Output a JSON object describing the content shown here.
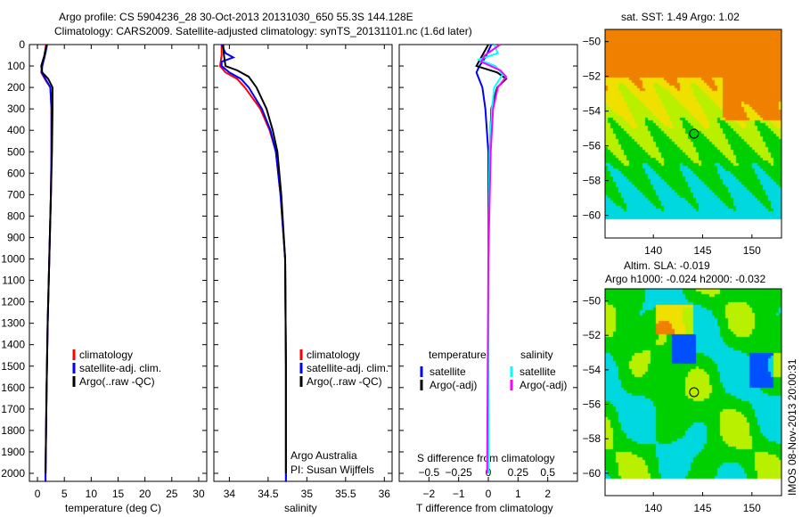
{
  "title_line1": "Argo profile: CS 5904236_28 30-Oct-2013 20131030_650 55.3S 144.128E",
  "title_line2": "Climatology: CARS2009. Satellite-adjusted climatology: synTS_20131101.nc (1.6d later)",
  "footer": "IMOS 08-Nov-2013 20:00:31",
  "colors": {
    "climatology": "#ff0000",
    "satellite": "#0000ff",
    "argo": "#000000",
    "s_satellite": "#00ffff",
    "s_argo": "#ff00ff"
  },
  "chart_data": [
    {
      "type": "line",
      "name": "temperature",
      "xlabel": "temperature (deg C)",
      "ylabel": "",
      "xlim": [
        -1.5,
        31.5
      ],
      "ylim": [
        2040,
        0
      ],
      "xticks": [
        0,
        5,
        10,
        15,
        20,
        25,
        30
      ],
      "yticks": [
        0,
        100,
        200,
        300,
        400,
        500,
        600,
        700,
        800,
        900,
        1000,
        1100,
        1200,
        1300,
        1400,
        1500,
        1600,
        1700,
        1800,
        1900,
        2000
      ],
      "legend": [
        "climatology",
        "satellite-adj. clim.",
        "Argo(..raw -QC)"
      ],
      "series": [
        {
          "name": "climatology",
          "depth": [
            0,
            50,
            100,
            130,
            170,
            200,
            300,
            500,
            700,
            1000,
            1300,
            1600,
            2000,
            2040
          ],
          "values": [
            1.6,
            1.3,
            0.8,
            0.7,
            1.6,
            2.4,
            2.6,
            2.6,
            2.5,
            2.2,
            1.9,
            1.7,
            1.5,
            1.5
          ]
        },
        {
          "name": "satellite-adj. clim.",
          "depth": [
            0,
            50,
            100,
            130,
            170,
            200,
            300,
            500,
            700,
            1000,
            1300,
            1600,
            2000,
            2040
          ],
          "values": [
            1.8,
            1.4,
            0.9,
            0.8,
            1.7,
            2.4,
            2.6,
            2.6,
            2.5,
            2.2,
            1.9,
            1.7,
            1.5,
            1.5
          ]
        },
        {
          "name": "Argo(..raw -QC)",
          "depth": [
            0,
            50,
            100,
            130,
            160,
            200,
            300,
            500,
            700,
            1000,
            1300,
            1600,
            2000
          ],
          "values": [
            1.7,
            1.3,
            0.7,
            0.9,
            2.0,
            2.8,
            2.8,
            2.7,
            2.5,
            2.2,
            1.9,
            1.7,
            1.5
          ]
        }
      ]
    },
    {
      "type": "line",
      "name": "salinity",
      "xlabel": "salinity",
      "xlim": [
        33.8,
        36.1
      ],
      "ylim": [
        2040,
        0
      ],
      "xticks": [
        34,
        34.5,
        35,
        35.5,
        36
      ],
      "legend": [
        "climatology",
        "satellite-adj. clim.",
        "Argo(..raw -QC)"
      ],
      "annotation": [
        "Argo Australia",
        "PI: Susan Wijffels"
      ],
      "series": [
        {
          "name": "climatology",
          "depth": [
            0,
            50,
            100,
            130,
            160,
            200,
            300,
            400,
            500,
            700,
            1000,
            1500,
            2000,
            2040
          ],
          "values": [
            33.9,
            33.9,
            33.88,
            33.95,
            34.1,
            34.2,
            34.4,
            34.52,
            34.6,
            34.66,
            34.72,
            34.73,
            34.73,
            34.73
          ]
        },
        {
          "name": "satellite-adj. clim.",
          "depth": [
            0,
            40,
            60,
            80,
            100,
            130,
            160,
            200,
            300,
            400,
            500,
            700,
            1000,
            1500,
            2000,
            2040
          ],
          "values": [
            33.9,
            33.95,
            34.05,
            33.9,
            33.9,
            34.0,
            34.15,
            34.25,
            34.42,
            34.53,
            34.6,
            34.66,
            34.72,
            34.73,
            34.73,
            34.73
          ]
        },
        {
          "name": "Argo(..raw -QC)",
          "depth": [
            0,
            50,
            100,
            120,
            150,
            200,
            300,
            400,
            500,
            700,
            1000,
            1500,
            2000
          ],
          "values": [
            33.92,
            33.93,
            33.95,
            34.1,
            34.25,
            34.35,
            34.48,
            34.56,
            34.62,
            34.67,
            34.72,
            34.73,
            34.73
          ]
        }
      ]
    },
    {
      "type": "line",
      "name": "difference",
      "xlabel": "T difference from climatology",
      "x2label": "S difference from climatology",
      "xlim": [
        -3,
        3
      ],
      "x2lim": [
        -0.75,
        0.75
      ],
      "ylim": [
        2040,
        0
      ],
      "xticks": [
        -2,
        -1,
        0,
        1,
        2
      ],
      "x2ticks": [
        -0.5,
        -0.25,
        0,
        0.25,
        0.5
      ],
      "legend_headers": [
        "temperature",
        "salinity"
      ],
      "legend": [
        "satellite",
        "Argo(-adj)",
        "satellite",
        "Argo(-adj)"
      ],
      "series": [
        {
          "name": "T satellite",
          "axis": "T",
          "depth": [
            0,
            60,
            100,
            130,
            200,
            300,
            500,
            1000,
            2000
          ],
          "values": [
            0.1,
            -0.1,
            -0.3,
            -0.4,
            -0.2,
            -0.1,
            0,
            0,
            0
          ]
        },
        {
          "name": "T Argo(-adj)",
          "axis": "T",
          "depth": [
            0,
            50,
            100,
            130,
            160,
            200,
            300,
            500,
            1000,
            2000
          ],
          "values": [
            0.0,
            -0.2,
            -0.4,
            0.3,
            0.6,
            0.3,
            0.1,
            0.05,
            0,
            0
          ]
        },
        {
          "name": "S satellite",
          "axis": "S",
          "depth": [
            0,
            40,
            70,
            100,
            140,
            200,
            300,
            500,
            1000,
            2000
          ],
          "values": [
            0.05,
            0.08,
            -0.08,
            0.06,
            0.12,
            0.05,
            0.03,
            0.01,
            0,
            0
          ]
        },
        {
          "name": "S Argo(-adj)",
          "axis": "S",
          "depth": [
            0,
            50,
            80,
            120,
            150,
            200,
            300,
            500,
            1000,
            2000
          ],
          "values": [
            0.1,
            -0.03,
            -0.06,
            0.1,
            0.15,
            0.08,
            0.04,
            0.02,
            0,
            -0.01
          ]
        }
      ]
    },
    {
      "type": "heatmap",
      "name": "sst_map",
      "title": "sat. SST: 1.49 Argo: 1.02",
      "xlim": [
        135.1,
        153
      ],
      "ylim": [
        -61.3,
        -49.3
      ],
      "xticks": [
        140,
        145,
        150
      ],
      "yticks": [
        -50,
        -52,
        -54,
        -56,
        -58,
        -60
      ],
      "marker": {
        "lon": 144.128,
        "lat": -55.3
      }
    },
    {
      "type": "heatmap",
      "name": "sla_map",
      "title": [
        "Altim. SLA: -0.019",
        "Argo h1000: -0.024 h2000: -0.032"
      ],
      "xlim": [
        135.1,
        153
      ],
      "ylim": [
        -61.3,
        -49.3
      ],
      "xticks": [
        140,
        145,
        150
      ],
      "yticks": [
        -50,
        -52,
        -54,
        -56,
        -58,
        -60
      ],
      "marker": {
        "lon": 144.128,
        "lat": -55.3
      }
    }
  ]
}
